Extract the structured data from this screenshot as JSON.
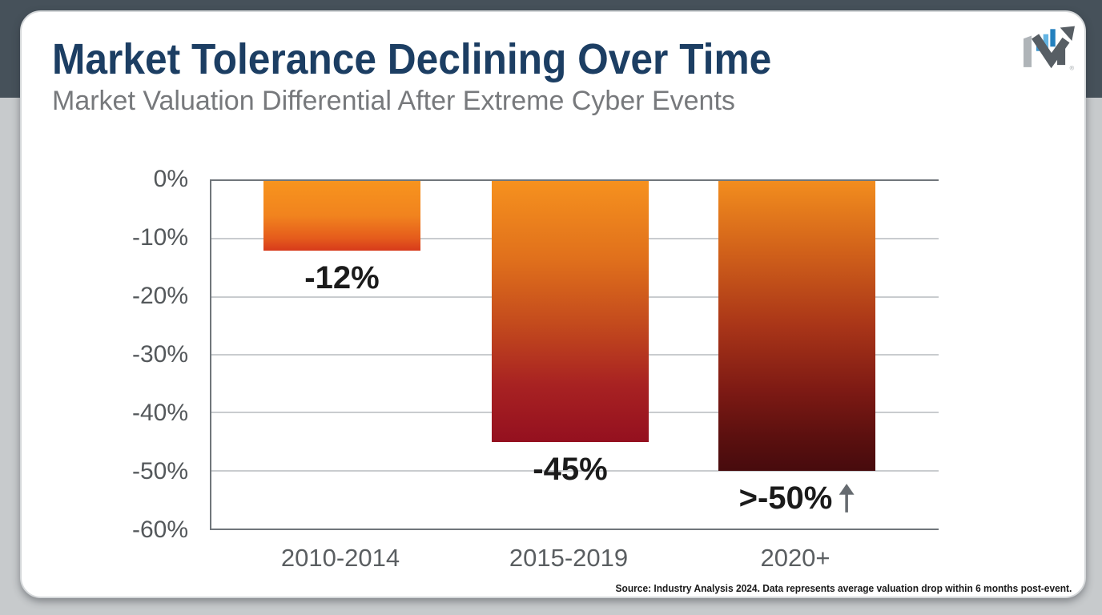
{
  "header": {
    "title": "Market Tolerance Declining Over Time",
    "subtitle": "Market Valuation Differential After Extreme Cyber Events"
  },
  "chart_data": {
    "type": "bar",
    "title": "Market Tolerance Declining Over Time",
    "subtitle": "Market Valuation Differential After Extreme Cyber Events",
    "categories": [
      "2010-2014",
      "2015-2019",
      "2020+"
    ],
    "values": [
      -12,
      -45,
      -50
    ],
    "bar_labels": [
      "-12%",
      "-45%",
      ">-50%"
    ],
    "ylim": [
      -60,
      0
    ],
    "yticks": [
      "0%",
      "-10%",
      "-20%",
      "-30%",
      "-40%",
      "-50%",
      "-60%"
    ],
    "grid": true,
    "legend": false,
    "bar_gradient_top": "#F7941E",
    "bar_gradient_bottoms": [
      "#D73A1B",
      "#94101F",
      "#470B0D"
    ]
  },
  "icons": {
    "logo": "bar-chart-trend-arrow-logo",
    "third_bar_annotation": "up-arrow"
  },
  "colors": {
    "title": "#1C3E63",
    "subtitle": "#77797C",
    "top_band": "#46515A",
    "background": "#C7CACC",
    "axis_line": "#70767B",
    "gridline": "#C9CCCF",
    "tick_label": "#54585B",
    "bar_value_label": "#1B1B1B",
    "arrow_icon": "#666B70"
  },
  "source": "Source: Industry Analysis 2024. Data represents average valuation drop within 6 months post-event."
}
